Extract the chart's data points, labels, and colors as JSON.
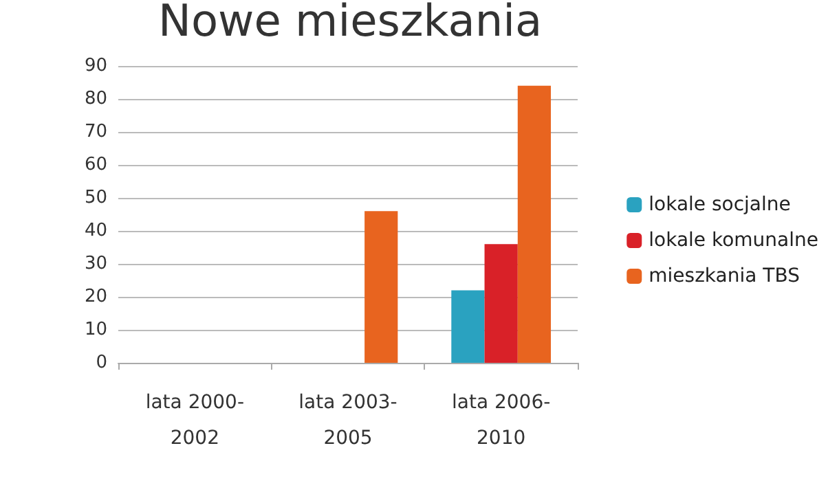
{
  "chart_data": {
    "type": "bar",
    "title": "Nowe mieszkania",
    "categories": [
      "lata 2000-2002",
      "lata 2003-2005",
      "lata 2006-2010"
    ],
    "series": [
      {
        "name": "lokale socjalne",
        "color": "#2aa2c0",
        "values": [
          null,
          null,
          22
        ]
      },
      {
        "name": "lokale komunalne",
        "color": "#d92128",
        "values": [
          null,
          null,
          36
        ]
      },
      {
        "name": "mieszkania TBS",
        "color": "#e8641f",
        "values": [
          null,
          46,
          84
        ]
      }
    ],
    "ylim": [
      0,
      90
    ],
    "yticks": [
      0,
      10,
      20,
      30,
      40,
      50,
      60,
      70,
      80,
      90
    ],
    "grid": "y",
    "legend": "right"
  }
}
